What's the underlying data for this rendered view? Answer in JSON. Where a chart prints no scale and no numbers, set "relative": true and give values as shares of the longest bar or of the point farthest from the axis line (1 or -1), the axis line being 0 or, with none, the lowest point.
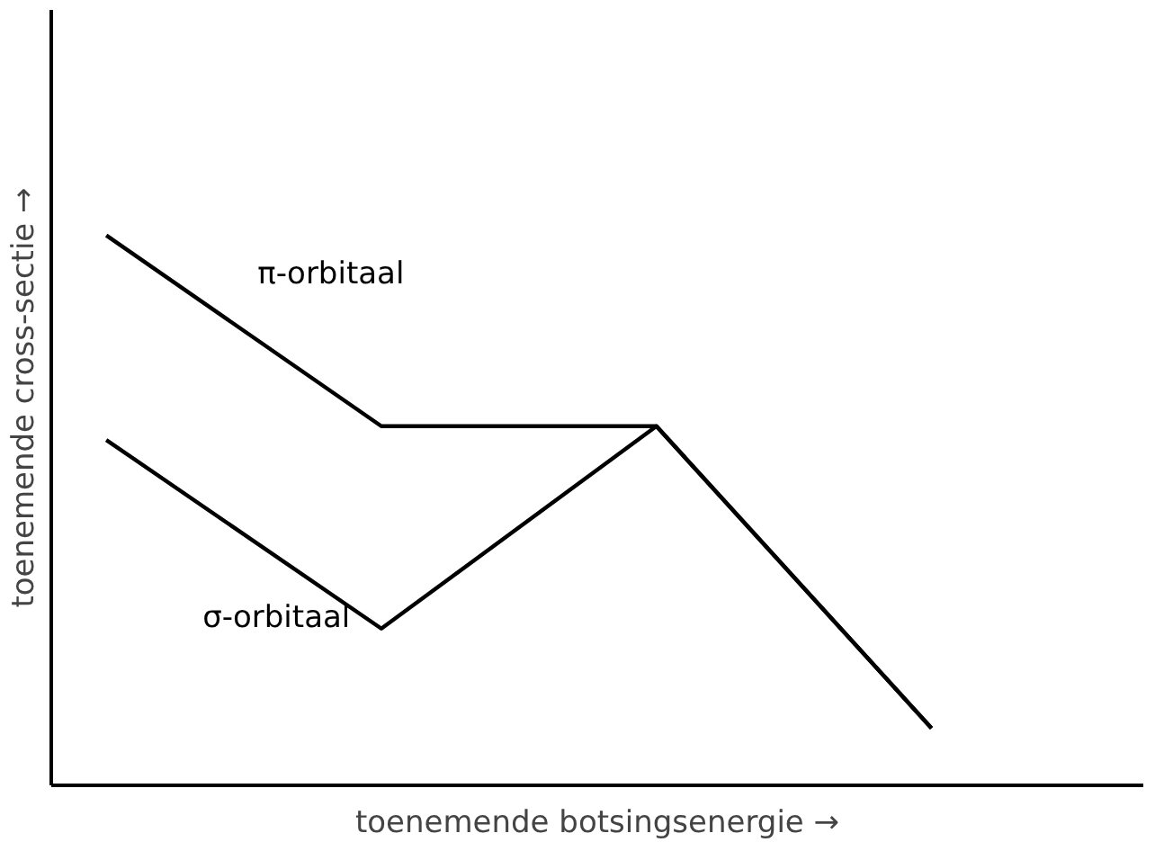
{
  "chart_data": {
    "type": "line",
    "relative": true,
    "xlabel": "toenemende botsingsenergie →",
    "ylabel": "toenemende cross-sectie →",
    "categories": [
      null,
      null,
      null,
      null
    ],
    "grid": false,
    "legend": false,
    "marker": "none",
    "line_style": "solid",
    "series": [
      {
        "name": "π-orbitaal",
        "color": "#000000",
        "values": [
          1,
          0.653,
          0.653,
          0.104
        ]
      },
      {
        "name": "σ-orbitaal",
        "color": "#000000",
        "values": [
          0.628,
          0.285,
          0.653,
          0.104
        ]
      }
    ]
  }
}
